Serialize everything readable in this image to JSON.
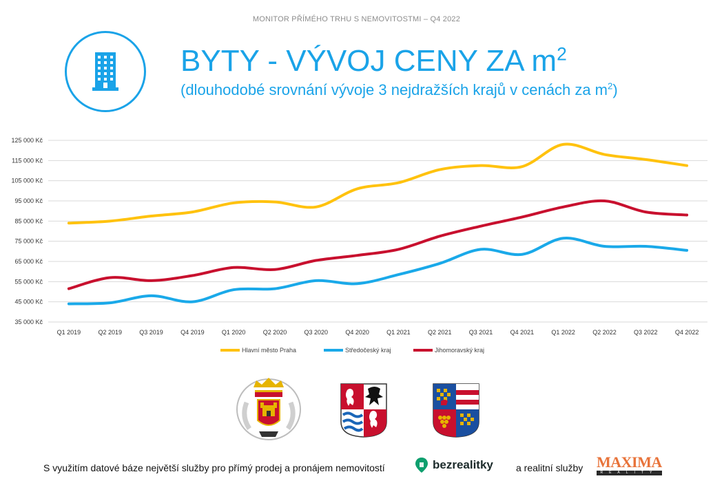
{
  "header": {
    "top_text": "MONITOR PŘÍMÉHO TRHU S NEMOVITOSTMI – Q4 2022"
  },
  "title": {
    "main": "BYTY - VÝVOJ CENY ZA m",
    "main_sup": "2",
    "sub": "(dlouhodobé srovnání vývoje 3 nejdražších krajů v cenách za m",
    "sub_sup": "2",
    "sub_end": ")"
  },
  "icon": "building-icon",
  "colors": {
    "accent": "#1aa3e8",
    "praha": "#ffc20e",
    "stredocesky": "#1aa9e9",
    "jihomoravsky": "#c8102e"
  },
  "chart_data": {
    "type": "line",
    "categories": [
      "Q1 2019",
      "Q2 2019",
      "Q3 2019",
      "Q4 2019",
      "Q1 2020",
      "Q2 2020",
      "Q3 2020",
      "Q4 2020",
      "Q1 2021",
      "Q2 2021",
      "Q3 2021",
      "Q4 2021",
      "Q1 2022",
      "Q2 2022",
      "Q3 2022",
      "Q4 2022"
    ],
    "y_ticks": [
      125000,
      115000,
      105000,
      95000,
      85000,
      75000,
      65000,
      55000,
      45000,
      35000
    ],
    "y_tick_labels": [
      "125 000 Kč",
      "115 000 Kč",
      "105 000 Kč",
      "95 000 Kč",
      "85 000 Kč",
      "75 000 Kč",
      "65 000 Kč",
      "55 000 Kč",
      "45 000 Kč",
      "35 000 Kč"
    ],
    "ylim": [
      35000,
      125000
    ],
    "grid": true,
    "legend_position": "bottom",
    "series": [
      {
        "name": "Hlavní město Praha",
        "color": "#ffc20e",
        "values": [
          84000,
          85000,
          87500,
          89500,
          94000,
          94500,
          92000,
          101000,
          104000,
          110500,
          112500,
          112000,
          123000,
          118000,
          115500,
          112500
        ]
      },
      {
        "name": "Středočeský kraj",
        "color": "#1aa9e9",
        "values": [
          44000,
          44500,
          48000,
          45000,
          51000,
          51500,
          55500,
          54000,
          58500,
          64000,
          71000,
          68500,
          76500,
          72500,
          72500,
          70500
        ]
      },
      {
        "name": "Jihomoravský kraj",
        "color": "#c8102e",
        "values": [
          51500,
          57000,
          55500,
          58000,
          62000,
          61000,
          65500,
          68000,
          71000,
          77500,
          82500,
          87000,
          92000,
          95000,
          89500,
          88000
        ]
      }
    ]
  },
  "crests": [
    "crest-praha",
    "crest-stredocesky",
    "crest-jihomoravsky"
  ],
  "footer": {
    "text": "S využitím datové báze největší služby pro přímý prodej a pronájem nemovitostí",
    "brand1": "bezrealitky",
    "mid": "a realitní služby",
    "brand2": "MAXIMA",
    "brand2_sub": "REALITY"
  }
}
